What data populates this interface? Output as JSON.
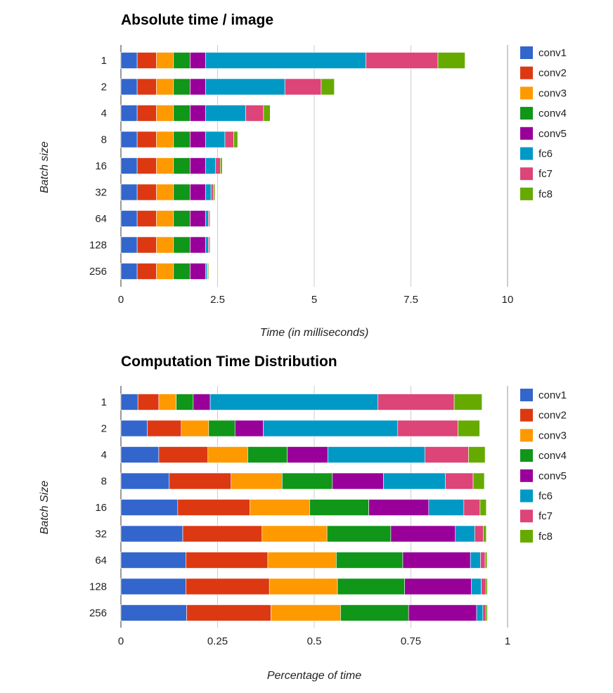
{
  "colors": {
    "conv1": "#3366cc",
    "conv2": "#dc3912",
    "conv3": "#ff9900",
    "conv4": "#109618",
    "conv5": "#990099",
    "fc6": "#0099c6",
    "fc7": "#dd4477",
    "fc8": "#66aa00"
  },
  "chart_data": [
    {
      "type": "bar",
      "orientation": "horizontal",
      "stacked": true,
      "title": "Absolute time / image",
      "xlabel": "Time (in milliseconds)",
      "ylabel": "Batch size",
      "xlim": [
        0,
        10
      ],
      "xticks": [
        "0",
        "2.5",
        "5",
        "7.5",
        "10"
      ],
      "grid": true,
      "legend_position": "right",
      "categories": [
        "1",
        "2",
        "4",
        "8",
        "16",
        "32",
        "64",
        "128",
        "256"
      ],
      "series": [
        {
          "name": "conv1",
          "values": [
            0.42,
            0.42,
            0.42,
            0.42,
            0.42,
            0.42,
            0.42,
            0.42,
            0.42
          ]
        },
        {
          "name": "conv2",
          "values": [
            0.5,
            0.5,
            0.5,
            0.5,
            0.5,
            0.5,
            0.5,
            0.5,
            0.5
          ]
        },
        {
          "name": "conv3",
          "values": [
            0.44,
            0.44,
            0.44,
            0.44,
            0.44,
            0.44,
            0.44,
            0.44,
            0.44
          ]
        },
        {
          "name": "conv4",
          "values": [
            0.43,
            0.43,
            0.43,
            0.43,
            0.43,
            0.43,
            0.43,
            0.43,
            0.43
          ]
        },
        {
          "name": "conv5",
          "values": [
            0.4,
            0.4,
            0.4,
            0.4,
            0.4,
            0.4,
            0.4,
            0.4,
            0.4
          ]
        },
        {
          "name": "fc6",
          "values": [
            4.15,
            2.05,
            1.04,
            0.5,
            0.26,
            0.14,
            0.07,
            0.07,
            0.04
          ]
        },
        {
          "name": "fc7",
          "values": [
            1.86,
            0.94,
            0.46,
            0.23,
            0.12,
            0.06,
            0.03,
            0.03,
            0.02
          ]
        },
        {
          "name": "fc8",
          "values": [
            0.7,
            0.34,
            0.17,
            0.1,
            0.05,
            0.04,
            0.02,
            0.02,
            0.02
          ]
        }
      ]
    },
    {
      "type": "bar",
      "orientation": "horizontal",
      "stacked": true,
      "title": "Computation Time Distribution",
      "xlabel": "Percentage of time",
      "ylabel": "Batch Size",
      "xlim": [
        0,
        1
      ],
      "xticks": [
        "0",
        "0.25",
        "0.5",
        "0.75",
        "1"
      ],
      "grid": true,
      "legend_position": "right",
      "categories": [
        "1",
        "2",
        "4",
        "8",
        "16",
        "32",
        "64",
        "128",
        "256"
      ],
      "series": [
        {
          "name": "conv1",
          "values": [
            0.044,
            0.068,
            0.098,
            0.125,
            0.147,
            0.16,
            0.168,
            0.168,
            0.17
          ]
        },
        {
          "name": "conv2",
          "values": [
            0.054,
            0.088,
            0.127,
            0.16,
            0.187,
            0.205,
            0.212,
            0.216,
            0.218
          ]
        },
        {
          "name": "conv3",
          "values": [
            0.045,
            0.071,
            0.103,
            0.132,
            0.154,
            0.168,
            0.177,
            0.176,
            0.18
          ]
        },
        {
          "name": "conv4",
          "values": [
            0.044,
            0.068,
            0.102,
            0.13,
            0.153,
            0.165,
            0.172,
            0.174,
            0.176
          ]
        },
        {
          "name": "conv5",
          "values": [
            0.044,
            0.073,
            0.105,
            0.132,
            0.155,
            0.167,
            0.175,
            0.172,
            0.176
          ]
        },
        {
          "name": "fc6",
          "values": [
            0.434,
            0.348,
            0.251,
            0.16,
            0.091,
            0.05,
            0.026,
            0.026,
            0.016
          ]
        },
        {
          "name": "fc7",
          "values": [
            0.197,
            0.156,
            0.113,
            0.072,
            0.042,
            0.022,
            0.012,
            0.012,
            0.008
          ]
        },
        {
          "name": "fc8",
          "values": [
            0.072,
            0.056,
            0.043,
            0.029,
            0.016,
            0.008,
            0.005,
            0.004,
            0.004
          ]
        }
      ]
    }
  ]
}
